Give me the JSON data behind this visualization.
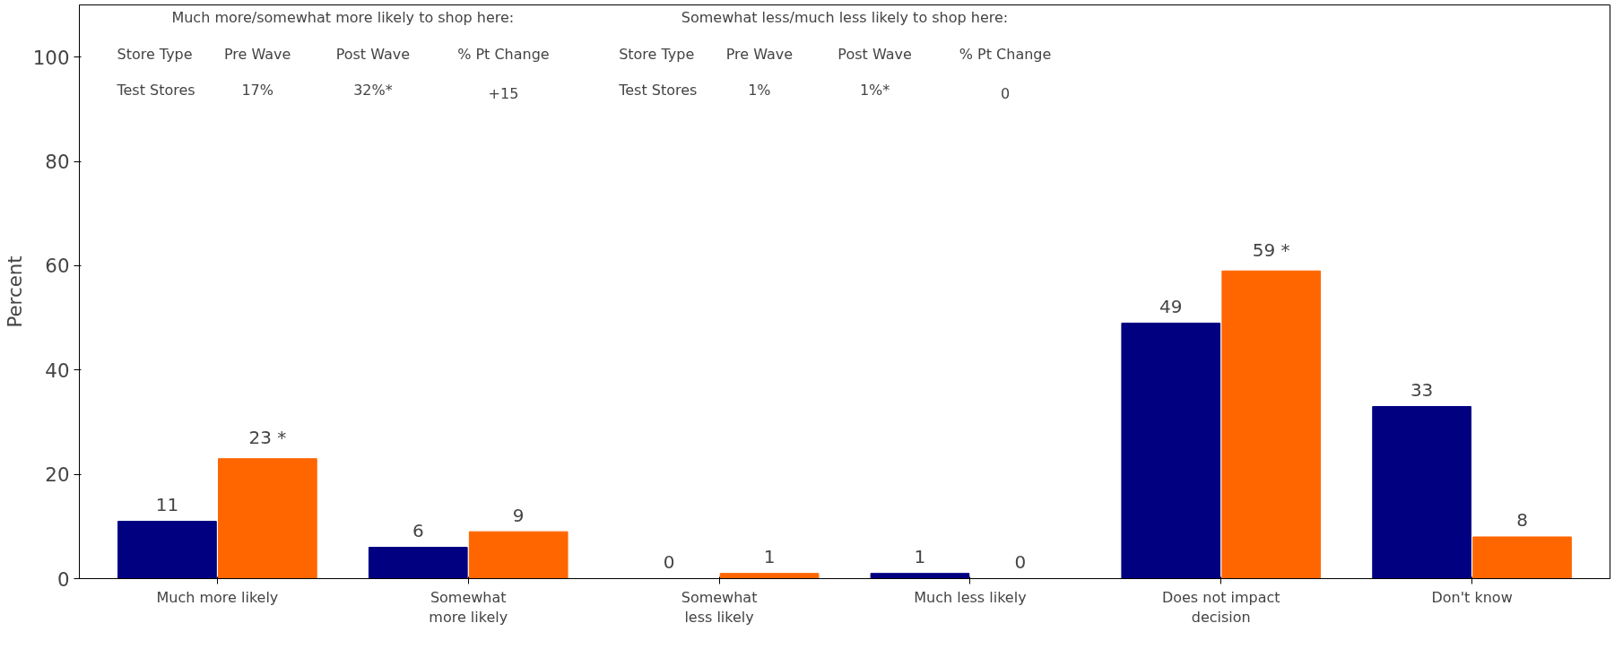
{
  "chart_data": {
    "type": "bar",
    "ylabel": "Percent",
    "categories": [
      "Much more likely",
      "Somewhat\nmore likely",
      "Somewhat\nless likely",
      "Much less likely",
      "Does not impact\ndecision",
      "Don't know"
    ],
    "series": [
      {
        "color": "#000080",
        "values": [
          11,
          6,
          0,
          1,
          49,
          33
        ],
        "value_labels": [
          "11",
          "6",
          "0",
          "1",
          "49",
          "33"
        ]
      },
      {
        "color": "#ff6600",
        "values": [
          23,
          9,
          1,
          0,
          59,
          8
        ],
        "value_labels": [
          "23 *",
          "9",
          "1",
          "0",
          "59 *",
          "8"
        ]
      }
    ],
    "ylim": [
      0,
      110
    ],
    "yticks": [
      0,
      20,
      40,
      60,
      80,
      100
    ],
    "grid": false,
    "annotations": [
      "Much more/somewhat more likely to shop here:",
      "Store Type",
      "Pre Wave",
      "Post Wave",
      "% Pt Change",
      "Test Stores",
      "17%",
      "32%*",
      "+15",
      "Somewhat less/much less likely to shop here:",
      "Store Type",
      "Pre Wave",
      "Post Wave",
      "% Pt Change",
      "Test Stores",
      "1%",
      "1%*",
      "0"
    ]
  }
}
